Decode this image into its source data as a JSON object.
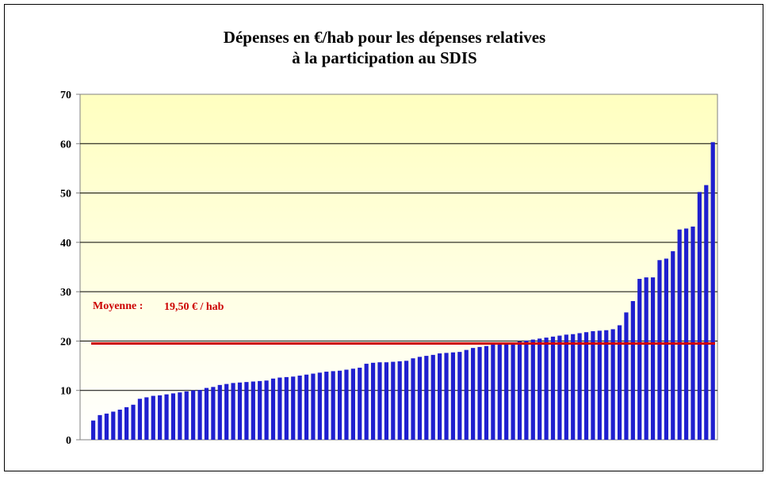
{
  "chart_data": {
    "type": "bar",
    "title_line1": "Dépenses en €/hab pour les dépenses relatives",
    "title_line2": "à la participation au SDIS",
    "xlabel": "",
    "ylabel": "",
    "ylim": [
      0,
      70
    ],
    "yticks": [
      0,
      10,
      20,
      30,
      40,
      50,
      60,
      70
    ],
    "grid": true,
    "average": {
      "label": "Moyenne :",
      "value_text": "19,50 € / hab",
      "value": 19.5,
      "color": "#cc0000"
    },
    "colors": {
      "bar": "#1f1fcf",
      "plot_top": "#ffffc0",
      "plot_bottom": "#ffffff"
    },
    "values": [
      3.9,
      5.0,
      5.3,
      5.7,
      6.1,
      6.6,
      7.1,
      8.3,
      8.6,
      8.9,
      9.0,
      9.2,
      9.4,
      9.6,
      9.8,
      10.0,
      10.1,
      10.5,
      10.7,
      11.1,
      11.3,
      11.5,
      11.6,
      11.7,
      11.8,
      11.9,
      12.0,
      12.4,
      12.6,
      12.7,
      12.8,
      13.0,
      13.2,
      13.4,
      13.6,
      13.8,
      13.9,
      14.0,
      14.2,
      14.4,
      14.6,
      15.4,
      15.6,
      15.7,
      15.7,
      15.8,
      15.9,
      16.0,
      16.5,
      16.8,
      17.0,
      17.2,
      17.5,
      17.6,
      17.7,
      17.8,
      18.2,
      18.6,
      18.8,
      19.0,
      19.3,
      19.4,
      19.5,
      19.7,
      19.9,
      20.1,
      20.3,
      20.5,
      20.7,
      20.9,
      21.1,
      21.3,
      21.4,
      21.6,
      21.8,
      22.0,
      22.1,
      22.2,
      22.4,
      23.2,
      25.8,
      28.1,
      32.6,
      32.9,
      32.9,
      36.4,
      36.7,
      38.2,
      42.6,
      42.8,
      43.2,
      50.2,
      51.6,
      60.3
    ]
  }
}
